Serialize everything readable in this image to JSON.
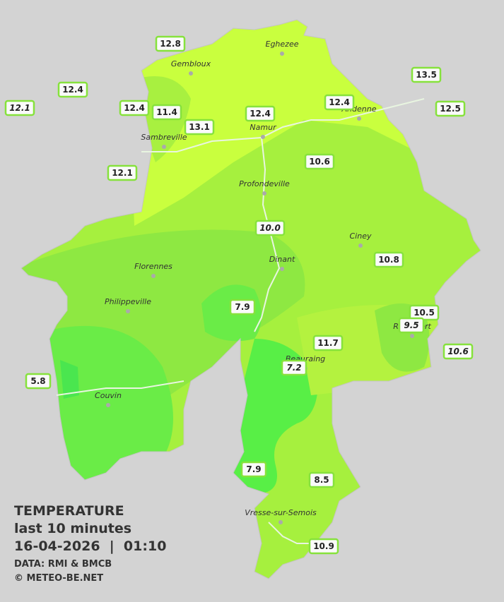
{
  "legend": {
    "title": "TEMPERATURE",
    "subtitle": "last 10 minutes",
    "datetime": "16-04-2026  |  01:10",
    "source": "DATA: RMI & BMCB",
    "credit": "© METEO-BE.NET"
  },
  "towns": [
    "Eghezee",
    "Gembloux",
    "Andenne",
    "Namur",
    "Sambreville",
    "Profondeville",
    "Ciney",
    "Dinant",
    "Florennes",
    "Philippeville",
    "Beauraing",
    "Rochefort",
    "Couvin",
    "Vresse-sur-Semois"
  ],
  "stations": [
    {
      "label": "12.8",
      "italic": false
    },
    {
      "label": "12.4",
      "italic": false
    },
    {
      "label": "12.1",
      "italic": true
    },
    {
      "label": "12.4",
      "italic": false
    },
    {
      "label": "11.4",
      "italic": false
    },
    {
      "label": "13.1",
      "italic": false
    },
    {
      "label": "12.4",
      "italic": false
    },
    {
      "label": "12.4",
      "italic": false
    },
    {
      "label": "13.5",
      "italic": false
    },
    {
      "label": "12.5",
      "italic": false
    },
    {
      "label": "12.1",
      "italic": false
    },
    {
      "label": "10.6",
      "italic": false
    },
    {
      "label": "10.0",
      "italic": true
    },
    {
      "label": "10.8",
      "italic": false
    },
    {
      "label": "7.9",
      "italic": false
    },
    {
      "label": "10.5",
      "italic": false
    },
    {
      "label": "9.5",
      "italic": true
    },
    {
      "label": "11.7",
      "italic": false
    },
    {
      "label": "10.6",
      "italic": true
    },
    {
      "label": "5.8",
      "italic": false
    },
    {
      "label": "7.2",
      "italic": true
    },
    {
      "label": "7.9",
      "italic": false
    },
    {
      "label": "8.5",
      "italic": false
    },
    {
      "label": "10.9",
      "italic": false
    }
  ]
}
